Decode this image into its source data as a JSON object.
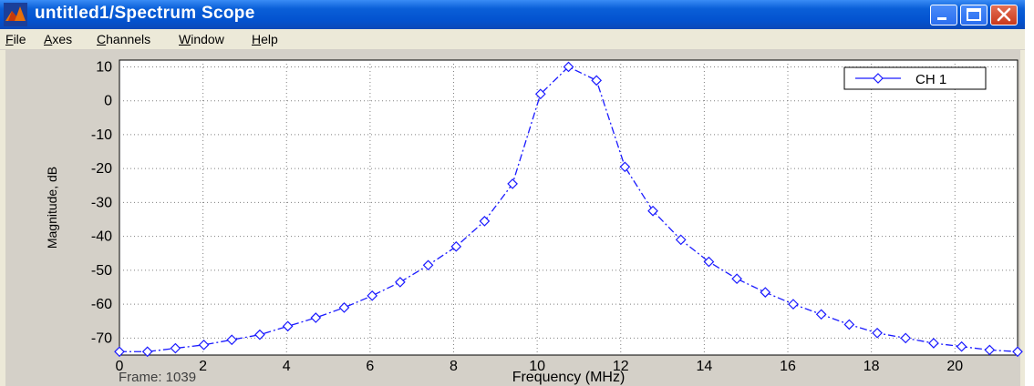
{
  "window": {
    "title": "untitled1/Spectrum Scope"
  },
  "menu": [
    {
      "label": "File",
      "accel": "F",
      "rest": "ile"
    },
    {
      "label": "Axes",
      "accel": "A",
      "rest": "xes"
    },
    {
      "label": "Channels",
      "accel": "C",
      "rest": "hannels"
    },
    {
      "label": "Window",
      "accel": "W",
      "rest": "indow"
    },
    {
      "label": "Help",
      "accel": "H",
      "rest": "elp"
    }
  ],
  "status": {
    "frame_text": "Frame: 1039"
  },
  "icons": [
    "matlab-icon",
    "minimize-icon",
    "maximize-icon",
    "close-icon",
    "diamond-marker-icon"
  ],
  "colors": {
    "title_bar": "#0352cf",
    "plot_background": "#ffffff",
    "series": "#1a1aff"
  },
  "chart_data": {
    "type": "line",
    "title": "",
    "xlabel": "Frequency (MHz)",
    "ylabel": "Magnitude, dB",
    "xlim": [
      0,
      21.5
    ],
    "ylim": [
      -75,
      12
    ],
    "xticks": [
      0,
      2,
      4,
      6,
      8,
      10,
      12,
      14,
      16,
      18,
      20
    ],
    "yticks": [
      10,
      0,
      -10,
      -20,
      -30,
      -40,
      -50,
      -60,
      -70
    ],
    "grid": true,
    "legend": "top-right",
    "series": [
      {
        "name": "CH 1",
        "marker": "diamond",
        "line_style": "dash-dot",
        "x": [
          0,
          0.67,
          1.34,
          2.02,
          2.69,
          3.36,
          4.03,
          4.7,
          5.38,
          6.05,
          6.72,
          7.39,
          8.06,
          8.74,
          9.41,
          10.08,
          10.75,
          11.42,
          12.1,
          12.77,
          13.44,
          14.11,
          14.78,
          15.46,
          16.13,
          16.8,
          17.47,
          18.14,
          18.82,
          19.49,
          20.16,
          20.83,
          21.5
        ],
        "y": [
          -74,
          -74,
          -73,
          -72,
          -70.5,
          -69,
          -66.5,
          -64,
          -61,
          -57.5,
          -53.5,
          -48.5,
          -43,
          -35.5,
          -24.5,
          2,
          10,
          6,
          -19.5,
          -32.5,
          -41,
          -47.5,
          -52.5,
          -56.5,
          -60,
          -63,
          -66,
          -68.5,
          -70,
          -71.5,
          -72.5,
          -73.5,
          -74
        ]
      }
    ]
  }
}
